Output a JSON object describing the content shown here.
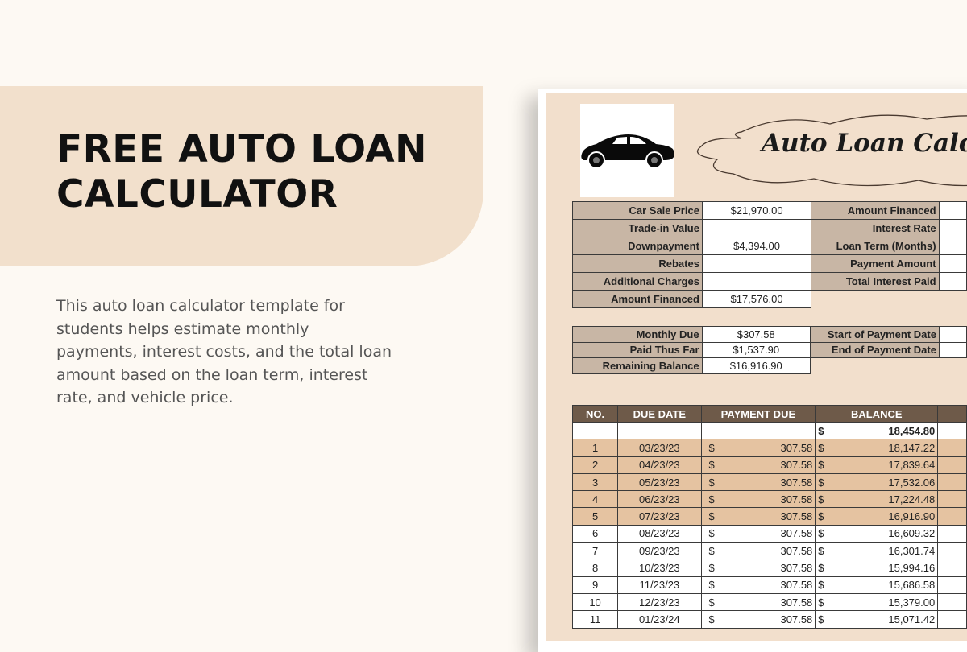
{
  "promo": {
    "title_line1": "FREE AUTO LOAN",
    "title_line2": "CALCULATOR",
    "description": "This auto loan calculator template for students helps estimate monthly payments, interest costs, and the total loan amount based on the loan term, interest rate, and vehicle price."
  },
  "sheet": {
    "title": "Auto Loan Calcu",
    "inputs": [
      {
        "label": "Car Sale Price",
        "value": "$21,970.00"
      },
      {
        "label": "Trade-in Value",
        "value": ""
      },
      {
        "label": "Downpayment",
        "value": "$4,394.00"
      },
      {
        "label": "Rebates",
        "value": ""
      },
      {
        "label": "Additional Charges",
        "value": ""
      },
      {
        "label": "Amount Financed",
        "value": "$17,576.00"
      }
    ],
    "right_labels": [
      "Amount Financed",
      "Interest Rate",
      "Loan Term (Months)",
      "Payment Amount",
      "Total Interest Paid"
    ],
    "summary": [
      {
        "label": "Monthly Due",
        "value": "$307.58"
      },
      {
        "label": "Paid Thus Far",
        "value": "$1,537.90"
      },
      {
        "label": "Remaining Balance",
        "value": "$16,916.90"
      }
    ],
    "date_labels": [
      "Start of Payment Date",
      "End of Payment Date"
    ],
    "schedule": {
      "headers": [
        "NO.",
        "DUE DATE",
        "PAYMENT DUE",
        "BALANCE"
      ],
      "currency": "$",
      "opening_balance": "18,454.80",
      "rows": [
        {
          "no": "1",
          "date": "03/23/23",
          "payment": "307.58",
          "balance": "18,147.22",
          "paid": true
        },
        {
          "no": "2",
          "date": "04/23/23",
          "payment": "307.58",
          "balance": "17,839.64",
          "paid": true
        },
        {
          "no": "3",
          "date": "05/23/23",
          "payment": "307.58",
          "balance": "17,532.06",
          "paid": true
        },
        {
          "no": "4",
          "date": "06/23/23",
          "payment": "307.58",
          "balance": "17,224.48",
          "paid": true
        },
        {
          "no": "5",
          "date": "07/23/23",
          "payment": "307.58",
          "balance": "16,916.90",
          "paid": true
        },
        {
          "no": "6",
          "date": "08/23/23",
          "payment": "307.58",
          "balance": "16,609.32",
          "paid": false
        },
        {
          "no": "7",
          "date": "09/23/23",
          "payment": "307.58",
          "balance": "16,301.74",
          "paid": false
        },
        {
          "no": "8",
          "date": "10/23/23",
          "payment": "307.58",
          "balance": "15,994.16",
          "paid": false
        },
        {
          "no": "9",
          "date": "11/23/23",
          "payment": "307.58",
          "balance": "15,686.58",
          "paid": false
        },
        {
          "no": "10",
          "date": "12/23/23",
          "payment": "307.58",
          "balance": "15,379.00",
          "paid": false
        },
        {
          "no": "11",
          "date": "01/23/24",
          "payment": "307.58",
          "balance": "15,071.42",
          "paid": false
        }
      ]
    }
  },
  "colors": {
    "banner": "#f2e0cc",
    "sheet_bg": "#f2dfcc",
    "label_cell": "#c8b6a5",
    "header": "#6e5a49",
    "paid_row": "#e5c3a1"
  }
}
